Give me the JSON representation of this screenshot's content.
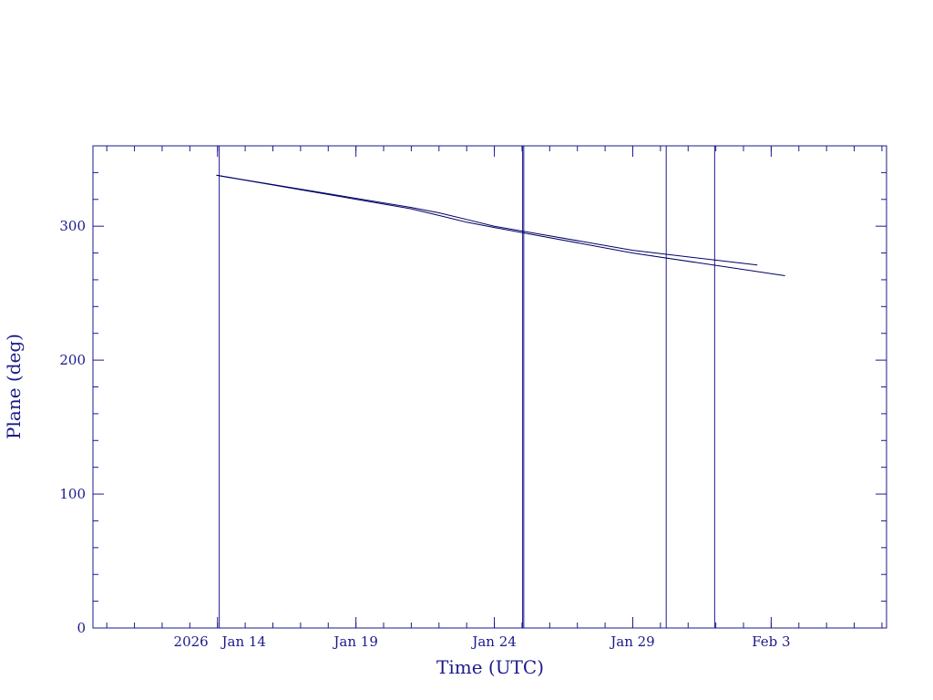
{
  "chart_data": {
    "type": "line",
    "xlabel": "Time (UTC)",
    "ylabel": "Plane (deg)",
    "xlim": [
      "2026-01-09T12:00",
      "2026-02-07T04:00"
    ],
    "ylim": [
      0,
      360
    ],
    "x_ticks": [
      {
        "date": "2026-01-14",
        "label": "2026 Jan 14"
      },
      {
        "date": "2026-01-19",
        "label": "Jan 19"
      },
      {
        "date": "2026-01-24",
        "label": "Jan 24"
      },
      {
        "date": "2026-01-29",
        "label": "Jan 29"
      },
      {
        "date": "2026-02-03",
        "label": "Feb  3"
      }
    ],
    "y_ticks": [
      0,
      100,
      200,
      300
    ],
    "vertical_markers": [
      "2026-01-14T01:30",
      "2026-01-25T00:30",
      "2026-01-25T01:30",
      "2026-01-30T05:00",
      "2026-01-31T23:00"
    ],
    "series": [
      {
        "color": "#000066",
        "points": [
          [
            "2026-01-13T23:00",
            338
          ],
          [
            "2026-01-21T00:00",
            314
          ],
          [
            "2026-01-22T00:00",
            310
          ],
          [
            "2026-01-23T00:00",
            305
          ],
          [
            "2026-01-24T00:00",
            300
          ],
          [
            "2026-01-29T00:00",
            282
          ],
          [
            "2026-02-02T12:00",
            271
          ]
        ]
      },
      {
        "color": "#000066",
        "points": [
          [
            "2026-01-13T23:00",
            338
          ],
          [
            "2026-01-21T00:00",
            313
          ],
          [
            "2026-01-22T00:00",
            308
          ],
          [
            "2026-01-23T00:00",
            303
          ],
          [
            "2026-01-24T00:00",
            299
          ],
          [
            "2026-01-29T00:00",
            280
          ],
          [
            "2026-02-03T12:00",
            263
          ]
        ]
      }
    ],
    "grid": false,
    "axis_color": "#1a1a8c",
    "marker_color": "#1a1a8c"
  }
}
